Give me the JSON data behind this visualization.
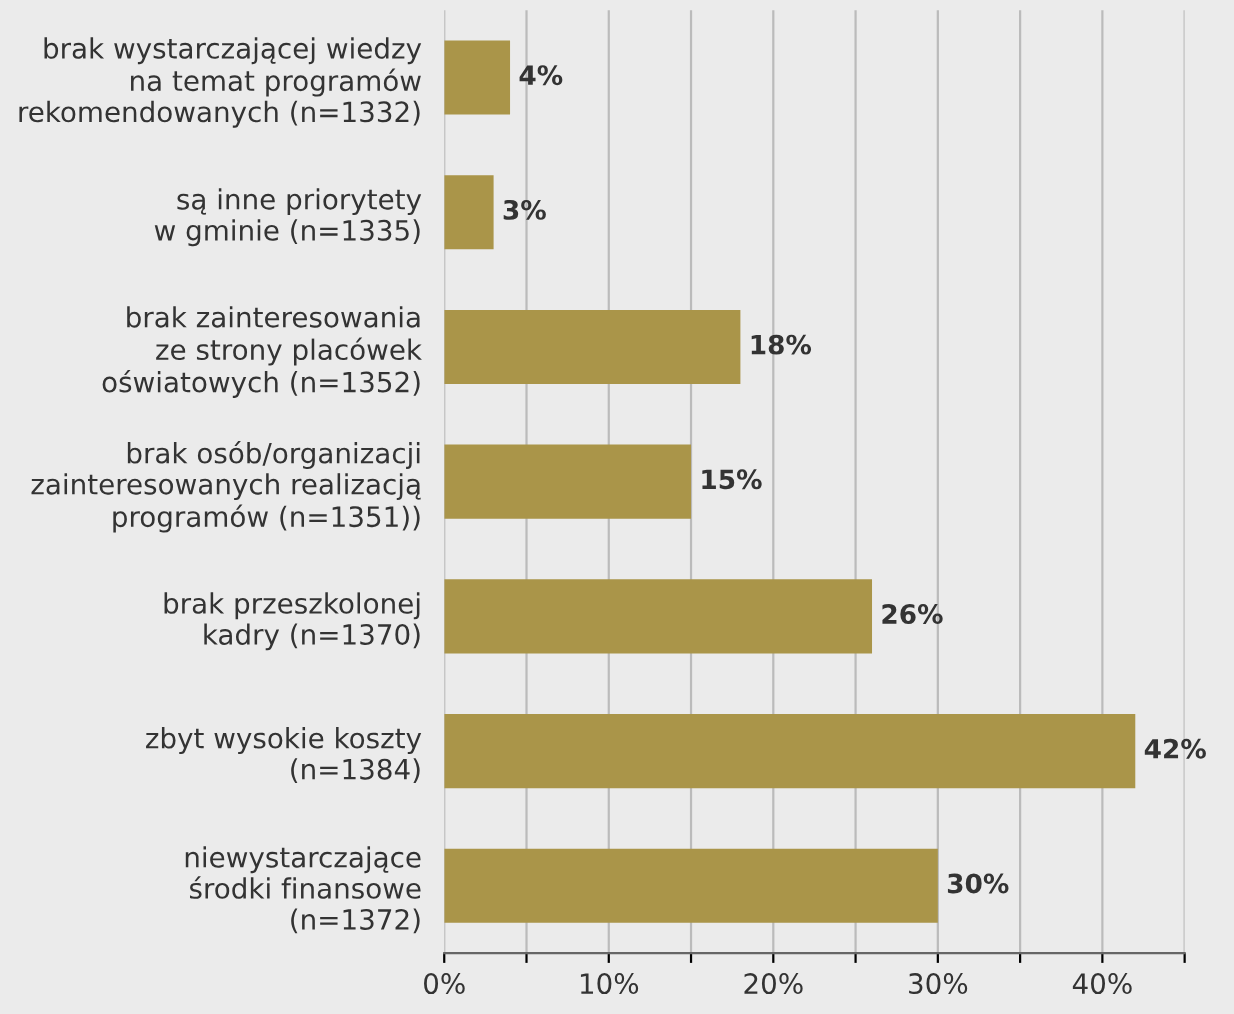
{
  "chart_data": {
    "type": "bar",
    "orientation": "horizontal",
    "categories": [
      "brak wystarczającej wiedzy\nna temat programów\nrekomendowanych (n=1332)",
      "są inne priorytety\nw gminie (n=1335)",
      "brak zainteresowania\nze strony placówek\noświatowych (n=1352)",
      "brak osób/organizacji\nzainteresowanych realizacją\nprogramów (n=1351))",
      "brak przeszkolonej\nkadry (n=1370)",
      "zbyt wysokie koszty\n(n=1384)",
      "niewystarczające\nśrodki finansowe\n(n=1372)"
    ],
    "values": [
      4,
      3,
      18,
      15,
      26,
      42,
      30
    ],
    "value_labels": [
      "4%",
      "3%",
      "18%",
      "15%",
      "26%",
      "42%",
      "30%"
    ],
    "color": "#aa9549",
    "xlim": [
      0,
      45
    ],
    "xticks": [
      {
        "value": 0,
        "label": "0%"
      },
      {
        "value": 5,
        "label": null
      },
      {
        "value": 10,
        "label": "10%"
      },
      {
        "value": 15,
        "label": null
      },
      {
        "value": 20,
        "label": "20%"
      },
      {
        "value": 25,
        "label": null
      },
      {
        "value": 30,
        "label": "30%"
      },
      {
        "value": 35,
        "label": null
      },
      {
        "value": 40,
        "label": "40%"
      },
      {
        "value": 45,
        "label": null
      }
    ],
    "grid": "x",
    "legend": false
  }
}
